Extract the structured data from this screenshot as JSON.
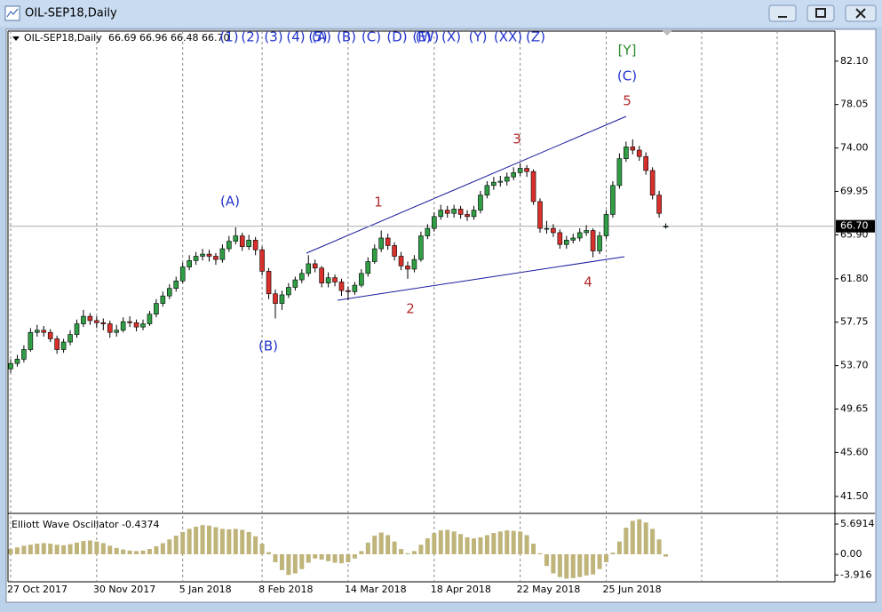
{
  "window": {
    "title": "OIL-SEP18,Daily"
  },
  "wave_toolbar": [
    "(1)",
    "(2)",
    "(3)",
    "(4)",
    "(5)",
    "(A)",
    "(B)",
    "(C)",
    "(D)",
    "(E)",
    "(W)",
    "(X)",
    "(Y)",
    "(XX)",
    "(Z)"
  ],
  "chart_data": [
    {
      "type": "candlestick",
      "title": "OIL-SEP18,Daily",
      "quote": "66.69 66.96 66.48 66.70",
      "categories": [
        "27 Oct 2017",
        null,
        null,
        null,
        null,
        null,
        null,
        null,
        null,
        null,
        null,
        null,
        null,
        "30 Nov 2017",
        null,
        null,
        null,
        null,
        null,
        null,
        null,
        null,
        null,
        null,
        null,
        null,
        "5 Jan 2018",
        null,
        null,
        null,
        null,
        null,
        null,
        null,
        null,
        null,
        null,
        null,
        "8 Feb 2018",
        null,
        null,
        null,
        null,
        null,
        null,
        null,
        null,
        null,
        null,
        null,
        null,
        "14 Mar 2018",
        null,
        null,
        null,
        null,
        null,
        null,
        null,
        null,
        null,
        null,
        null,
        null,
        "18 Apr 2018",
        null,
        null,
        null,
        null,
        null,
        null,
        null,
        null,
        null,
        null,
        null,
        null,
        "22 May 2018",
        null,
        null,
        null,
        null,
        null,
        null,
        null,
        null,
        null,
        null,
        null,
        null,
        "25 Jun 2018",
        null,
        null,
        null,
        null,
        null,
        null,
        null,
        null,
        null
      ],
      "open": [
        53.4,
        53.9,
        54.3,
        55.2,
        56.8,
        57.0,
        56.8,
        56.2,
        55.2,
        55.9,
        56.6,
        57.6,
        58.3,
        57.9,
        57.7,
        57.6,
        56.8,
        57.0,
        57.8,
        57.7,
        57.3,
        57.6,
        58.5,
        59.5,
        60.2,
        60.9,
        61.6,
        62.9,
        63.5,
        63.9,
        64.1,
        63.9,
        63.6,
        64.6,
        65.3,
        65.8,
        64.8,
        65.4,
        64.5,
        62.5,
        60.4,
        59.5,
        60.3,
        61.0,
        61.7,
        62.3,
        63.2,
        62.8,
        61.4,
        61.9,
        61.5,
        60.7,
        60.6,
        61.2,
        62.3,
        63.4,
        64.6,
        65.6,
        64.9,
        63.9,
        63.0,
        62.7,
        63.6,
        65.8,
        66.5,
        67.6,
        68.2,
        67.9,
        68.3,
        67.8,
        67.6,
        68.2,
        69.6,
        70.5,
        70.8,
        70.9,
        71.3,
        71.7,
        72.1,
        71.8,
        69.0,
        66.5,
        66.5,
        66.1,
        65.0,
        65.4,
        65.6,
        66.1,
        66.3,
        64.4,
        65.8,
        67.8,
        70.5,
        73.0,
        74.1,
        73.8,
        73.2,
        71.9,
        69.6,
        66.69
      ],
      "high": [
        54.3,
        54.7,
        55.6,
        57.2,
        57.5,
        57.4,
        57.1,
        56.5,
        56.2,
        57.0,
        58.0,
        58.9,
        58.6,
        58.3,
        58.1,
        57.9,
        57.5,
        58.2,
        58.3,
        58.0,
        58.0,
        58.8,
        59.9,
        60.6,
        61.3,
        62.0,
        63.3,
        64.0,
        64.3,
        64.6,
        64.5,
        64.2,
        65.0,
        65.8,
        66.6,
        66.1,
        65.9,
        65.7,
        64.8,
        62.8,
        60.8,
        60.7,
        61.4,
        62.0,
        62.7,
        64.0,
        63.6,
        63.0,
        62.4,
        62.2,
        61.8,
        61.1,
        61.5,
        62.7,
        63.8,
        65.0,
        66.3,
        66.0,
        65.2,
        64.3,
        63.4,
        64.0,
        66.2,
        66.9,
        68.0,
        68.7,
        68.6,
        68.7,
        68.6,
        68.2,
        68.6,
        70.0,
        70.9,
        71.3,
        71.4,
        71.7,
        72.2,
        72.6,
        72.4,
        72.0,
        69.3,
        67.2,
        66.9,
        66.4,
        65.8,
        66.0,
        66.5,
        66.8,
        66.5,
        66.2,
        68.2,
        70.9,
        73.5,
        74.6,
        74.8,
        74.2,
        73.6,
        72.2,
        70.0,
        66.96
      ],
      "low": [
        53.0,
        53.6,
        54.0,
        55.0,
        56.4,
        56.4,
        55.9,
        54.8,
        54.9,
        55.6,
        56.3,
        57.3,
        57.5,
        57.2,
        57.0,
        56.3,
        56.4,
        56.8,
        57.3,
        56.9,
        57.0,
        57.4,
        58.2,
        59.2,
        59.9,
        60.6,
        61.4,
        62.6,
        63.1,
        63.5,
        63.4,
        63.1,
        63.3,
        64.3,
        65.0,
        64.4,
        64.5,
        64.0,
        62.1,
        59.9,
        58.1,
        58.9,
        60.0,
        60.7,
        61.4,
        62.0,
        62.4,
        61.0,
        61.0,
        61.1,
        60.2,
        59.8,
        60.3,
        61.0,
        62.0,
        63.2,
        64.3,
        64.5,
        63.5,
        62.6,
        61.8,
        62.4,
        63.4,
        65.5,
        66.2,
        67.3,
        67.5,
        67.5,
        67.4,
        67.2,
        67.3,
        67.9,
        69.3,
        70.1,
        70.4,
        70.5,
        71.0,
        71.4,
        71.3,
        68.7,
        66.1,
        66.0,
        65.7,
        64.6,
        64.6,
        65.1,
        65.3,
        65.8,
        63.8,
        64.1,
        65.5,
        67.5,
        70.2,
        72.7,
        73.4,
        72.8,
        71.5,
        69.2,
        67.5,
        66.48
      ],
      "close": [
        53.9,
        54.3,
        55.2,
        56.8,
        57.0,
        56.8,
        56.2,
        55.2,
        55.9,
        56.6,
        57.6,
        58.3,
        57.9,
        57.7,
        57.6,
        56.8,
        57.0,
        57.8,
        57.7,
        57.3,
        57.6,
        58.5,
        59.5,
        60.2,
        60.9,
        61.6,
        62.9,
        63.5,
        63.9,
        64.1,
        63.9,
        63.6,
        64.6,
        65.3,
        65.8,
        64.8,
        65.4,
        64.5,
        62.5,
        60.4,
        59.5,
        60.3,
        61.0,
        61.7,
        62.3,
        63.2,
        62.8,
        61.4,
        61.9,
        61.5,
        60.7,
        60.6,
        61.2,
        62.3,
        63.4,
        64.6,
        65.6,
        64.9,
        63.9,
        63.0,
        62.7,
        63.6,
        65.8,
        66.5,
        67.6,
        68.2,
        67.9,
        68.3,
        67.8,
        67.6,
        68.2,
        69.6,
        70.5,
        70.8,
        70.9,
        71.3,
        71.7,
        72.1,
        71.8,
        69.0,
        66.5,
        66.5,
        66.1,
        65.0,
        65.4,
        65.6,
        66.1,
        66.3,
        64.4,
        65.8,
        67.8,
        70.5,
        73.0,
        74.1,
        73.8,
        73.2,
        71.9,
        69.6,
        67.9,
        66.7
      ],
      "up_color": "#2f9e44",
      "down_color": "#d9302c",
      "ylim": [
        40.0,
        84.9
      ],
      "yticks": [
        {
          "value": 82.1,
          "label": "82.10"
        },
        {
          "value": 78.05,
          "label": "78.05"
        },
        {
          "value": 74.0,
          "label": "74.00"
        },
        {
          "value": 69.95,
          "label": "69.95"
        },
        {
          "value": 65.9,
          "label": "65.90"
        },
        {
          "value": 61.8,
          "label": "61.80"
        },
        {
          "value": 57.75,
          "label": "57.75"
        },
        {
          "value": 53.7,
          "label": "53.70"
        },
        {
          "value": 49.65,
          "label": "49.65"
        },
        {
          "value": 45.6,
          "label": "45.60"
        },
        {
          "value": 41.5,
          "label": "41.50"
        }
      ],
      "current_price": {
        "value": 66.7,
        "label": "66.70"
      },
      "annotations": [
        {
          "text": "(A)",
          "color": "#2233cc"
        },
        {
          "text": "(B)",
          "color": "#2233cc"
        },
        {
          "text": "1",
          "color": "#b02a2a"
        },
        {
          "text": "2",
          "color": "#b02a2a"
        },
        {
          "text": "3",
          "color": "#b02a2a"
        },
        {
          "text": "4",
          "color": "#b02a2a"
        },
        {
          "text": "5",
          "color": "#b02a2a"
        },
        {
          "text": "(C)",
          "color": "#2233cc"
        },
        {
          "text": "[Y]",
          "color": "#2a8a2a"
        }
      ],
      "grid": true
    },
    {
      "type": "bar",
      "title": "Elliott Wave Oscillator -0.4374",
      "color": "#bfb47a",
      "values": [
        1.0,
        1.3,
        1.6,
        1.8,
        2.0,
        2.1,
        2.0,
        1.8,
        1.7,
        1.9,
        2.2,
        2.5,
        2.6,
        2.4,
        2.1,
        1.6,
        1.2,
        0.9,
        0.7,
        0.6,
        0.7,
        1.0,
        1.5,
        2.1,
        2.8,
        3.5,
        4.2,
        4.8,
        5.2,
        5.5,
        5.4,
        5.1,
        4.8,
        4.7,
        4.8,
        4.6,
        4.2,
        3.4,
        2.0,
        0.4,
        -1.5,
        -3.0,
        -3.9,
        -3.6,
        -2.8,
        -1.6,
        -0.8,
        -1.0,
        -1.3,
        -1.6,
        -1.7,
        -1.5,
        -0.8,
        0.6,
        2.2,
        3.5,
        4.1,
        3.6,
        2.4,
        1.0,
        0.2,
        0.6,
        1.8,
        3.0,
        4.0,
        4.5,
        4.6,
        4.3,
        3.8,
        3.2,
        3.0,
        3.2,
        3.6,
        4.0,
        4.3,
        4.5,
        4.4,
        4.3,
        3.6,
        2.0,
        0.2,
        -2.2,
        -3.6,
        -4.3,
        -4.6,
        -4.5,
        -4.3,
        -4.0,
        -3.8,
        -2.8,
        -1.5,
        0.3,
        2.4,
        5.0,
        6.3,
        6.6,
        6.0,
        4.8,
        2.8,
        -0.4374
      ],
      "ylim": [
        -4.86,
        7.37
      ],
      "yticks": [
        5.6914,
        {
          "value": 0,
          "label": "0.00"
        },
        -3.916
      ]
    }
  ]
}
